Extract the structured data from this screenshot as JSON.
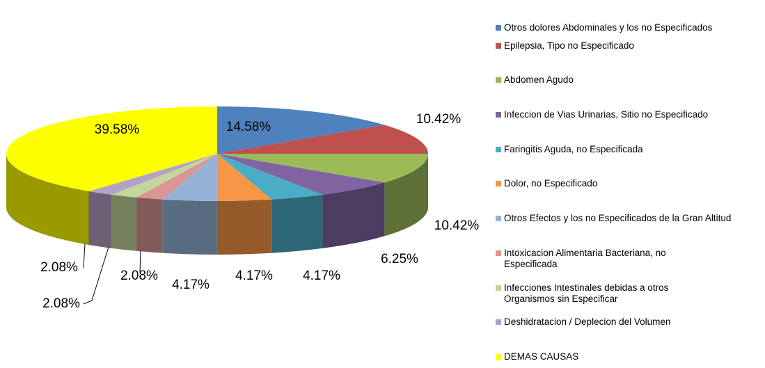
{
  "chart_data": {
    "type": "pie",
    "categories": [
      "Otros dolores Abdominales y los no Especificados",
      "Epilepsia, Tipo no Especificado",
      "Abdomen Agudo",
      "Infeccion de Vias Urinarias, Sitio no Especificado",
      "Faringitis Aguda, no Especificada",
      "Dolor, no Especificado",
      "Otros Efectos y los no Especificados de la Gran Altitud",
      "Intoxicacion Alimentaria Bacteriana, no Especificada",
      "Infecciones Intestinales debidas a otros Organismos sin Especificar",
      "Deshidratacion / Deplecion del Volumen",
      "DEMAS CAUSAS"
    ],
    "values": [
      14.58,
      10.42,
      10.42,
      6.25,
      4.17,
      4.17,
      4.17,
      2.08,
      2.08,
      2.08,
      39.58
    ],
    "value_labels": [
      "14.58%",
      "10.42%",
      "10.42%",
      "6.25%",
      "4.17%",
      "4.17%",
      "4.17%",
      "2.08%",
      "2.08%",
      "2.08%",
      "39.58%"
    ],
    "colors": [
      "#4f81bd",
      "#c0504d",
      "#9bbb59",
      "#8064a2",
      "#4bacc6",
      "#f79646",
      "#95b3d7",
      "#d99694",
      "#c3d69b",
      "#b3a2c7",
      "#ffff00"
    ],
    "legend": "right"
  }
}
